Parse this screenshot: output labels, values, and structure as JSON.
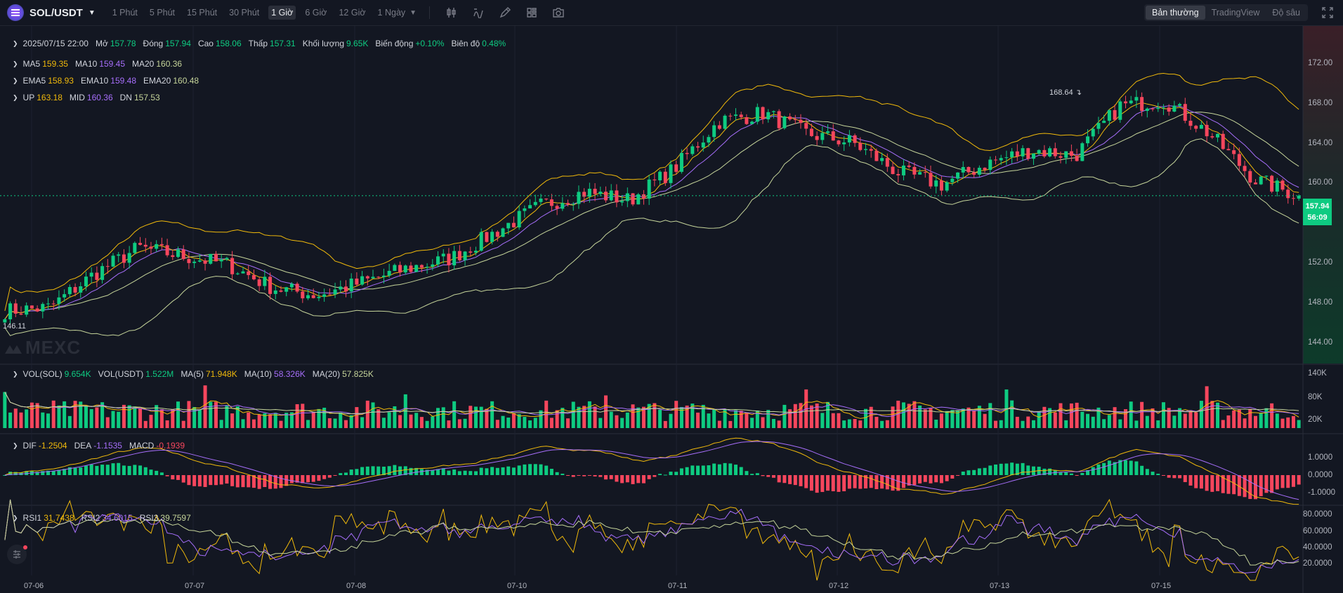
{
  "header": {
    "symbol": "SOL/USDT",
    "timeframes": [
      "1 Phút",
      "5 Phút",
      "15 Phút",
      "30 Phút",
      "1 Giờ",
      "6 Giờ",
      "12 Giờ",
      "1 Ngày"
    ],
    "active_timeframe": "1 Giờ",
    "tool_icons": [
      "candle-type-icon",
      "indicators-icon",
      "draw-icon",
      "layout-icon",
      "screenshot-icon"
    ],
    "view_modes": [
      "Bản thường",
      "TradingView",
      "Độ sâu"
    ],
    "active_view": "Bản thường",
    "fullscreen_icon": "fullscreen-icon"
  },
  "ohlc": {
    "date": "2025/07/15 22:00",
    "open_label": "Mở",
    "open": "157.78",
    "close_label": "Đóng",
    "close": "157.94",
    "high_label": "Cao",
    "high": "158.06",
    "low_label": "Thấp",
    "low": "157.31",
    "volume_label": "Khối lượng",
    "volume": "9.65K",
    "change_label": "Biến động",
    "change": "+0.10%",
    "amplitude_label": "Biên độ",
    "amplitude": "0.48%"
  },
  "ma": {
    "ma5_label": "MA5",
    "ma5": "159.35",
    "ma10_label": "MA10",
    "ma10": "159.45",
    "ma20_label": "MA20",
    "ma20": "160.36"
  },
  "ema": {
    "ema5_label": "EMA5",
    "ema5": "158.93",
    "ema10_label": "EMA10",
    "ema10": "159.48",
    "ema20_label": "EMA20",
    "ema20": "160.48"
  },
  "boll": {
    "up_label": "UP",
    "up": "163.18",
    "mid_label": "MID",
    "mid": "160.36",
    "dn_label": "DN",
    "dn": "157.53"
  },
  "volume_legend": {
    "vol_sol_label": "VOL(SOL)",
    "vol_sol": "9.654K",
    "vol_usdt_label": "VOL(USDT)",
    "vol_usdt": "1.522M",
    "ma5_label": "MA(5)",
    "ma5": "71.948K",
    "ma10_label": "MA(10)",
    "ma10": "58.326K",
    "ma20_label": "MA(20)",
    "ma20": "57.825K"
  },
  "macd_legend": {
    "dif_label": "DIF",
    "dif": "-1.2504",
    "dea_label": "DEA",
    "dea": "-1.1535",
    "macd_label": "MACD",
    "macd": "-0.1939"
  },
  "rsi_legend": {
    "rsi1_label": "RSI1",
    "rsi1": "31.7438",
    "rsi2_label": "RSI2",
    "rsi2": "34.6015",
    "rsi3_label": "RSI3",
    "rsi3": "39.7597"
  },
  "price_axis": [
    "172.00",
    "168.00",
    "164.00",
    "160.00",
    "156.00",
    "152.00",
    "148.00",
    "144.00"
  ],
  "volume_axis": [
    "140K",
    "80K",
    "20K"
  ],
  "macd_axis": [
    "1.0000",
    "0.0000",
    "-1.0000"
  ],
  "rsi_axis": [
    "80.0000",
    "60.0000",
    "40.0000",
    "20.0000"
  ],
  "time_axis": [
    "07-06",
    "07-07",
    "07-08",
    "07-10",
    "07-11",
    "07-12",
    "07-13",
    "07-15"
  ],
  "last_price": {
    "price": "157.94",
    "countdown": "56:09"
  },
  "annotations": {
    "high": "168.64",
    "low": "146.11"
  },
  "watermark": "MEXC",
  "colors": {
    "up": "#0ecb81",
    "down": "#f6465d",
    "ma5": "#f0b90b",
    "ma10": "#a66efa",
    "ma20": "#c5d49a",
    "bg": "#131722"
  },
  "chart_data": {
    "type": "candlestick",
    "interval": "1 Giờ",
    "y_range": [
      142,
      174
    ],
    "price_anchor_points": [
      [
        "07-06",
        147.0
      ],
      [
        "07-06",
        147.3
      ],
      [
        "07-06",
        150.5
      ],
      [
        "07-06",
        153.0
      ],
      [
        "07-07",
        152.2
      ],
      [
        "07-07",
        151.4
      ],
      [
        "07-07",
        149.2
      ],
      [
        "07-07",
        148.5
      ],
      [
        "07-08",
        149.7
      ],
      [
        "07-08",
        151.0
      ],
      [
        "07-08",
        152.0
      ],
      [
        "07-08",
        154.5
      ],
      [
        "07-10",
        157.0
      ],
      [
        "07-10",
        158.3
      ],
      [
        "07-10",
        157.5
      ],
      [
        "07-11",
        160.5
      ],
      [
        "07-11",
        165.0
      ],
      [
        "07-11",
        165.8
      ],
      [
        "07-11",
        163.8
      ],
      [
        "07-12",
        163.0
      ],
      [
        "07-12",
        160.2
      ],
      [
        "07-12",
        159.0
      ],
      [
        "07-12",
        161.0
      ],
      [
        "07-13",
        162.3
      ],
      [
        "07-13",
        161.8
      ],
      [
        "07-13",
        166.5
      ],
      [
        "07-13",
        167.0
      ],
      [
        "07-15",
        163.8
      ],
      [
        "07-15",
        159.5
      ],
      [
        "07-15",
        157.94
      ]
    ],
    "last_close": 157.94,
    "high": 168.64,
    "low": 146.11
  }
}
